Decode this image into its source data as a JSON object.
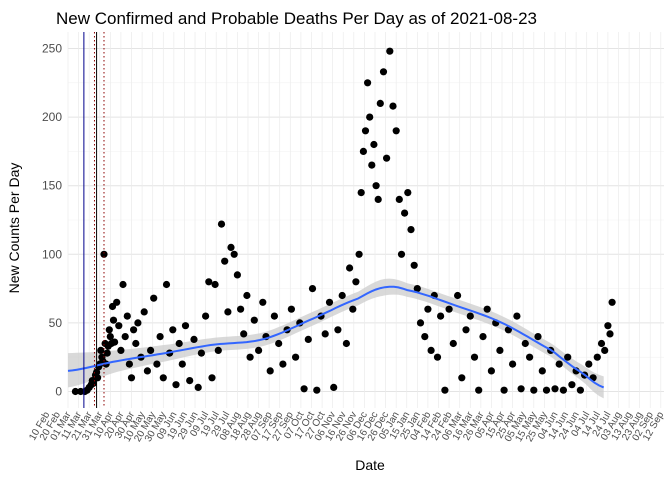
{
  "chart_data": {
    "type": "scatter",
    "title": "New Confirmed and Probable Deaths Per Day as of 2021-08-23",
    "xlabel": "Date",
    "ylabel": "New Counts Per Day",
    "ylim": [
      0,
      250
    ],
    "xlim": [
      "2020-03-01",
      "2021-09-15"
    ],
    "y_ticks": [
      0,
      50,
      100,
      150,
      200,
      250
    ],
    "x_tick_labels": [
      "10 Feb",
      "20 Feb",
      "01 Mar",
      "11 Mar",
      "21 Mar",
      "31 Mar",
      "10 Apr",
      "20 Apr",
      "30 Apr",
      "10 May",
      "20 May",
      "30 May",
      "09 Jun",
      "19 Jun",
      "29 Jun",
      "09 Jul",
      "19 Jul",
      "29 Jul",
      "08 Aug",
      "18 Aug",
      "28 Aug",
      "07 Sep",
      "17 Sep",
      "27 Sep",
      "07 Oct",
      "17 Oct",
      "27 Oct",
      "06 Nov",
      "16 Nov",
      "26 Nov",
      "06 Dec",
      "16 Dec",
      "26 Dec",
      "05 Jan",
      "15 Jan",
      "25 Jan",
      "04 Feb",
      "14 Feb",
      "24 Feb",
      "06 Mar",
      "16 Mar",
      "26 Mar",
      "05 Apr",
      "15 Apr",
      "25 Apr",
      "05 May",
      "15 May",
      "25 May",
      "04 Jun",
      "14 Jun",
      "24 Jun",
      "04 Jul",
      "14 Jul",
      "24 Jul",
      "03 Aug",
      "13 Aug",
      "23 Aug",
      "02 Sep",
      "12 Sep"
    ],
    "grid": true,
    "reference_lines": [
      {
        "date": "2020-03-16",
        "style": "solid",
        "color": "#00008b"
      },
      {
        "date": "2020-03-26",
        "style": "dotted",
        "color": "#8b0000"
      },
      {
        "date": "2020-03-28",
        "style": "solid",
        "color": "#000000"
      },
      {
        "date": "2020-04-04",
        "style": "dotted",
        "color": "#8b0000"
      }
    ],
    "smooth": {
      "color": "#3366ff",
      "band_color": "#cccccc",
      "points": [
        {
          "x": "2020-03-01",
          "y": 15,
          "lo": 3,
          "hi": 28
        },
        {
          "x": "2020-04-15",
          "y": 22,
          "lo": 14,
          "hi": 30
        },
        {
          "x": "2020-06-01",
          "y": 28,
          "lo": 22,
          "hi": 34
        },
        {
          "x": "2020-07-15",
          "y": 34,
          "lo": 29,
          "hi": 39
        },
        {
          "x": "2020-09-01",
          "y": 38,
          "lo": 33,
          "hi": 43
        },
        {
          "x": "2020-10-15",
          "y": 52,
          "lo": 47,
          "hi": 57
        },
        {
          "x": "2020-12-01",
          "y": 68,
          "lo": 63,
          "hi": 73
        },
        {
          "x": "2020-12-25",
          "y": 76,
          "lo": 70,
          "hi": 82
        },
        {
          "x": "2021-01-15",
          "y": 74,
          "lo": 69,
          "hi": 79
        },
        {
          "x": "2021-03-01",
          "y": 63,
          "lo": 58,
          "hi": 68
        },
        {
          "x": "2021-04-15",
          "y": 50,
          "lo": 45,
          "hi": 55
        },
        {
          "x": "2021-06-01",
          "y": 30,
          "lo": 25,
          "hi": 35
        },
        {
          "x": "2021-07-01",
          "y": 13,
          "lo": 7,
          "hi": 19
        },
        {
          "x": "2021-07-20",
          "y": 3,
          "lo": -5,
          "hi": 11
        }
      ]
    },
    "series": [
      {
        "points": [
          [
            "2020-03-08",
            0
          ],
          [
            "2020-03-13",
            0
          ],
          [
            "2020-03-17",
            0
          ],
          [
            "2020-03-19",
            1
          ],
          [
            "2020-03-21",
            3
          ],
          [
            "2020-03-23",
            5
          ],
          [
            "2020-03-24",
            8
          ],
          [
            "2020-03-25",
            6
          ],
          [
            "2020-03-27",
            12
          ],
          [
            "2020-03-28",
            14
          ],
          [
            "2020-03-29",
            10
          ],
          [
            "2020-03-30",
            18
          ],
          [
            "2020-03-31",
            20
          ],
          [
            "2020-04-01",
            30
          ],
          [
            "2020-04-02",
            25
          ],
          [
            "2020-04-03",
            22
          ],
          [
            "2020-04-04",
            100
          ],
          [
            "2020-04-05",
            35
          ],
          [
            "2020-04-06",
            20
          ],
          [
            "2020-04-07",
            28
          ],
          [
            "2020-04-08",
            33
          ],
          [
            "2020-04-09",
            45
          ],
          [
            "2020-04-10",
            40
          ],
          [
            "2020-04-11",
            35
          ],
          [
            "2020-04-12",
            62
          ],
          [
            "2020-04-13",
            52
          ],
          [
            "2020-04-14",
            36
          ],
          [
            "2020-04-16",
            65
          ],
          [
            "2020-04-18",
            48
          ],
          [
            "2020-04-20",
            30
          ],
          [
            "2020-04-22",
            78
          ],
          [
            "2020-04-24",
            40
          ],
          [
            "2020-04-26",
            55
          ],
          [
            "2020-04-28",
            20
          ],
          [
            "2020-04-30",
            10
          ],
          [
            "2020-05-02",
            45
          ],
          [
            "2020-05-04",
            35
          ],
          [
            "2020-05-06",
            50
          ],
          [
            "2020-05-09",
            25
          ],
          [
            "2020-05-12",
            58
          ],
          [
            "2020-05-15",
            15
          ],
          [
            "2020-05-18",
            30
          ],
          [
            "2020-05-21",
            68
          ],
          [
            "2020-05-24",
            20
          ],
          [
            "2020-05-27",
            40
          ],
          [
            "2020-05-30",
            10
          ],
          [
            "2020-06-02",
            78
          ],
          [
            "2020-06-05",
            28
          ],
          [
            "2020-06-08",
            45
          ],
          [
            "2020-06-11",
            5
          ],
          [
            "2020-06-14",
            35
          ],
          [
            "2020-06-17",
            20
          ],
          [
            "2020-06-20",
            48
          ],
          [
            "2020-06-24",
            8
          ],
          [
            "2020-06-28",
            38
          ],
          [
            "2020-07-02",
            3
          ],
          [
            "2020-07-05",
            28
          ],
          [
            "2020-07-09",
            55
          ],
          [
            "2020-07-12",
            80
          ],
          [
            "2020-07-15",
            10
          ],
          [
            "2020-07-18",
            78
          ],
          [
            "2020-07-21",
            30
          ],
          [
            "2020-07-24",
            122
          ],
          [
            "2020-07-27",
            95
          ],
          [
            "2020-07-30",
            58
          ],
          [
            "2020-08-02",
            105
          ],
          [
            "2020-08-05",
            100
          ],
          [
            "2020-08-08",
            85
          ],
          [
            "2020-08-11",
            60
          ],
          [
            "2020-08-14",
            42
          ],
          [
            "2020-08-17",
            70
          ],
          [
            "2020-08-20",
            25
          ],
          [
            "2020-08-24",
            52
          ],
          [
            "2020-08-28",
            30
          ],
          [
            "2020-09-01",
            65
          ],
          [
            "2020-09-04",
            40
          ],
          [
            "2020-09-08",
            15
          ],
          [
            "2020-09-12",
            55
          ],
          [
            "2020-09-16",
            35
          ],
          [
            "2020-09-20",
            20
          ],
          [
            "2020-09-24",
            45
          ],
          [
            "2020-09-28",
            60
          ],
          [
            "2020-10-02",
            25
          ],
          [
            "2020-10-06",
            50
          ],
          [
            "2020-10-10",
            2
          ],
          [
            "2020-10-14",
            38
          ],
          [
            "2020-10-18",
            75
          ],
          [
            "2020-10-22",
            1
          ],
          [
            "2020-10-26",
            55
          ],
          [
            "2020-10-30",
            42
          ],
          [
            "2020-11-03",
            65
          ],
          [
            "2020-11-07",
            3
          ],
          [
            "2020-11-11",
            45
          ],
          [
            "2020-11-15",
            70
          ],
          [
            "2020-11-19",
            35
          ],
          [
            "2020-11-22",
            90
          ],
          [
            "2020-11-25",
            60
          ],
          [
            "2020-11-28",
            80
          ],
          [
            "2020-12-01",
            100
          ],
          [
            "2020-12-03",
            145
          ],
          [
            "2020-12-05",
            175
          ],
          [
            "2020-12-07",
            190
          ],
          [
            "2020-12-09",
            225
          ],
          [
            "2020-12-11",
            200
          ],
          [
            "2020-12-13",
            165
          ],
          [
            "2020-12-15",
            180
          ],
          [
            "2020-12-17",
            150
          ],
          [
            "2020-12-19",
            140
          ],
          [
            "2020-12-21",
            210
          ],
          [
            "2020-12-24",
            233
          ],
          [
            "2020-12-27",
            170
          ],
          [
            "2020-12-30",
            248
          ],
          [
            "2021-01-02",
            208
          ],
          [
            "2021-01-05",
            190
          ],
          [
            "2021-01-08",
            140
          ],
          [
            "2021-01-10",
            100
          ],
          [
            "2021-01-13",
            130
          ],
          [
            "2021-01-16",
            145
          ],
          [
            "2021-01-19",
            118
          ],
          [
            "2021-01-22",
            92
          ],
          [
            "2021-01-25",
            75
          ],
          [
            "2021-01-28",
            50
          ],
          [
            "2021-02-01",
            40
          ],
          [
            "2021-02-04",
            60
          ],
          [
            "2021-02-07",
            30
          ],
          [
            "2021-02-10",
            70
          ],
          [
            "2021-02-13",
            25
          ],
          [
            "2021-02-16",
            55
          ],
          [
            "2021-02-20",
            1
          ],
          [
            "2021-02-24",
            60
          ],
          [
            "2021-02-28",
            35
          ],
          [
            "2021-03-04",
            70
          ],
          [
            "2021-03-08",
            10
          ],
          [
            "2021-03-12",
            45
          ],
          [
            "2021-03-16",
            55
          ],
          [
            "2021-03-20",
            25
          ],
          [
            "2021-03-24",
            1
          ],
          [
            "2021-03-28",
            40
          ],
          [
            "2021-04-01",
            60
          ],
          [
            "2021-04-05",
            15
          ],
          [
            "2021-04-09",
            50
          ],
          [
            "2021-04-13",
            30
          ],
          [
            "2021-04-17",
            1
          ],
          [
            "2021-04-21",
            45
          ],
          [
            "2021-04-25",
            20
          ],
          [
            "2021-04-29",
            55
          ],
          [
            "2021-05-03",
            2
          ],
          [
            "2021-05-07",
            35
          ],
          [
            "2021-05-11",
            25
          ],
          [
            "2021-05-15",
            1
          ],
          [
            "2021-05-19",
            40
          ],
          [
            "2021-05-23",
            15
          ],
          [
            "2021-05-27",
            1
          ],
          [
            "2021-05-31",
            30
          ],
          [
            "2021-06-04",
            2
          ],
          [
            "2021-06-08",
            20
          ],
          [
            "2021-06-12",
            1
          ],
          [
            "2021-06-16",
            25
          ],
          [
            "2021-06-20",
            5
          ],
          [
            "2021-06-24",
            15
          ],
          [
            "2021-06-28",
            1
          ],
          [
            "2021-07-02",
            12
          ],
          [
            "2021-07-06",
            20
          ],
          [
            "2021-07-10",
            10
          ],
          [
            "2021-07-14",
            25
          ],
          [
            "2021-07-18",
            35
          ],
          [
            "2021-07-21",
            30
          ],
          [
            "2021-07-24",
            48
          ],
          [
            "2021-07-26",
            42
          ],
          [
            "2021-07-28",
            65
          ]
        ]
      }
    ]
  }
}
